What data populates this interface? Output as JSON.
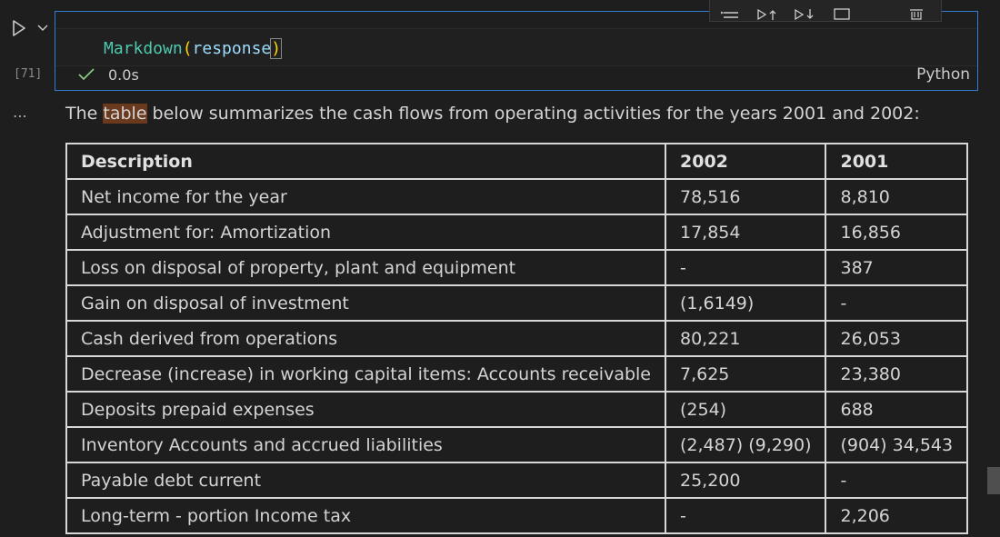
{
  "cell": {
    "execution_count": "[71]",
    "code": {
      "func": "Markdown",
      "open": "(",
      "arg": "response",
      "close": ")"
    },
    "status_time": "0.0s",
    "language": "Python"
  },
  "output": {
    "intro_before": "The ",
    "intro_highlight": "table",
    "intro_after": " below summarizes the cash flows from operating activities for the years 2001 and 2002:",
    "table": {
      "headers": [
        "Description",
        "2002",
        "2001"
      ],
      "rows": [
        [
          "Net income for the year",
          "78,516",
          "8,810"
        ],
        [
          "Adjustment for: Amortization",
          "17,854",
          "16,856"
        ],
        [
          "Loss on disposal of property, plant and equipment",
          "-",
          "387"
        ],
        [
          "Gain on disposal of investment",
          "(1,6149)",
          "-"
        ],
        [
          "Cash derived from operations",
          "80,221",
          "26,053"
        ],
        [
          "Decrease (increase) in working capital items: Accounts receivable",
          "7,625",
          "23,380"
        ],
        [
          "Deposits prepaid expenses",
          "(254)",
          "688"
        ],
        [
          "Inventory Accounts and accrued liabilities",
          "(2,487) (9,290)",
          "(904) 34,543"
        ],
        [
          "Payable debt current",
          "25,200",
          "-"
        ],
        [
          "Long-term - portion Income tax",
          "-",
          "2,206"
        ]
      ]
    }
  },
  "icons": {
    "run": "play-icon",
    "run_menu": "chevron-down-icon",
    "status": "check-icon",
    "more": "ellipsis-icon"
  },
  "colors": {
    "accent": "#2f7ed2",
    "success": "#89d185",
    "highlight": "#6b3a1e"
  }
}
